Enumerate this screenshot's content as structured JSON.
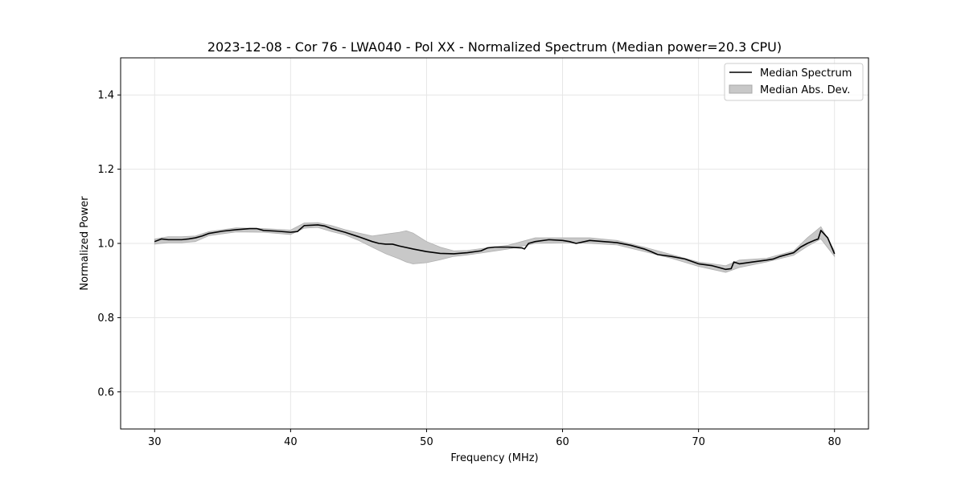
{
  "chart_data": {
    "type": "line",
    "title": "2023-12-08 - Cor 76 - LWA040 - Pol XX - Normalized Spectrum (Median power=20.3 CPU)",
    "xlabel": "Frequency (MHz)",
    "ylabel": "Normalized Power",
    "xlim": [
      27.5,
      82.5
    ],
    "ylim": [
      0.5,
      1.5
    ],
    "xticks": [
      30,
      40,
      50,
      60,
      70,
      80
    ],
    "yticks": [
      0.6,
      0.8,
      1.0,
      1.2,
      1.4
    ],
    "xtick_labels": [
      "30",
      "40",
      "50",
      "60",
      "70",
      "80"
    ],
    "ytick_labels": [
      "0.6",
      "0.8",
      "1.0",
      "1.2",
      "1.4"
    ],
    "grid": true,
    "legend_position": "top-right",
    "series": [
      {
        "name": "Median Spectrum",
        "style": "line",
        "color": "#000000",
        "x": [
          30,
          30.5,
          31,
          31.5,
          32,
          32.5,
          33,
          33.5,
          34,
          35,
          36,
          37,
          37.5,
          38,
          39,
          40,
          40.5,
          41,
          42,
          42.5,
          43,
          44,
          45,
          46,
          46.5,
          47,
          47.5,
          48,
          49,
          50,
          51,
          52,
          53,
          54,
          54.5,
          55,
          56,
          57,
          57.2,
          57.5,
          58,
          59,
          60,
          60.5,
          61,
          62,
          63,
          64,
          65,
          66,
          66.5,
          67,
          68,
          69,
          70,
          71,
          71.5,
          72,
          72.4,
          72.6,
          73,
          74,
          75,
          75.5,
          76,
          77,
          77.5,
          78,
          78.5,
          78.8,
          79,
          79.5,
          80
        ],
        "y": [
          1.005,
          1.012,
          1.01,
          1.01,
          1.01,
          1.012,
          1.015,
          1.02,
          1.027,
          1.033,
          1.037,
          1.04,
          1.04,
          1.035,
          1.033,
          1.03,
          1.032,
          1.048,
          1.05,
          1.047,
          1.04,
          1.03,
          1.018,
          1.005,
          1.0,
          0.998,
          0.998,
          0.993,
          0.985,
          0.978,
          0.973,
          0.972,
          0.975,
          0.98,
          0.988,
          0.99,
          0.99,
          0.988,
          0.985,
          1.0,
          1.005,
          1.01,
          1.008,
          1.005,
          1.0,
          1.008,
          1.005,
          1.002,
          0.995,
          0.985,
          0.978,
          0.97,
          0.965,
          0.958,
          0.945,
          0.94,
          0.935,
          0.93,
          0.932,
          0.95,
          0.945,
          0.95,
          0.955,
          0.958,
          0.965,
          0.975,
          0.99,
          1.0,
          1.008,
          1.012,
          1.035,
          1.015,
          0.972
        ]
      },
      {
        "name": "Median Abs. Dev.",
        "style": "band",
        "color": "#c8c8c8",
        "x": [
          30,
          31,
          32,
          33,
          34,
          36,
          38,
          40,
          41,
          42,
          43,
          44,
          45,
          46,
          47,
          48,
          48.5,
          49,
          50,
          51,
          52,
          53,
          54,
          56,
          58,
          60,
          62,
          64,
          66,
          68,
          70,
          72,
          73,
          75,
          77,
          78,
          79,
          80
        ],
        "upper": [
          1.012,
          1.018,
          1.018,
          1.02,
          1.032,
          1.042,
          1.04,
          1.036,
          1.055,
          1.056,
          1.048,
          1.037,
          1.028,
          1.02,
          1.025,
          1.03,
          1.034,
          1.028,
          1.005,
          0.99,
          0.98,
          0.981,
          0.986,
          0.995,
          1.015,
          1.015,
          1.015,
          1.008,
          0.99,
          0.97,
          0.95,
          0.94,
          0.955,
          0.96,
          0.98,
          1.015,
          1.045,
          0.98
        ],
        "lower": [
          0.998,
          1.002,
          1.002,
          1.005,
          1.021,
          1.031,
          1.03,
          1.024,
          1.041,
          1.043,
          1.032,
          1.023,
          1.008,
          0.99,
          0.972,
          0.958,
          0.95,
          0.945,
          0.948,
          0.956,
          0.965,
          0.969,
          0.974,
          0.985,
          1.0,
          1.002,
          1.0,
          0.996,
          0.978,
          0.96,
          0.938,
          0.922,
          0.935,
          0.95,
          0.968,
          0.992,
          1.012,
          0.965
        ]
      }
    ],
    "legend": [
      {
        "label": "Median Spectrum",
        "kind": "line",
        "color": "#000000"
      },
      {
        "label": "Median Abs. Dev.",
        "kind": "patch",
        "color": "#c8c8c8"
      }
    ]
  }
}
